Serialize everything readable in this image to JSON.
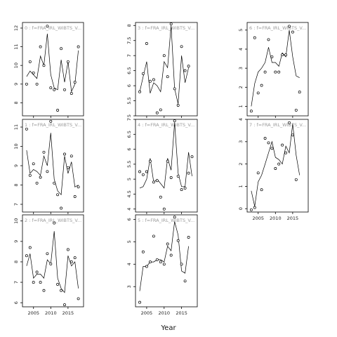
{
  "chart_data": {
    "type": "line",
    "layout": "3x3 facet grid (columns filled top-to-bottom)",
    "xlabel": "Year",
    "ylabel": "",
    "grid": false,
    "legend": "none",
    "x_ticks": [
      2005,
      2010,
      2015
    ],
    "xlim": [
      2001.8,
      2019.5
    ],
    "panels": [
      {
        "title": "0 : f=FRA_IRL_WIBTS_V...",
        "ylim": [
          7.3,
          12.3
        ],
        "y_ticks": [
          8,
          9,
          10,
          11,
          12
        ],
        "line_x": [
          2003,
          2004,
          2005,
          2006,
          2007,
          2008,
          2009,
          2010,
          2011,
          2012,
          2013,
          2014,
          2015,
          2016,
          2017,
          2018
        ],
        "line_y": [
          9.4,
          9.7,
          9.5,
          9.3,
          10.5,
          10.0,
          11.7,
          9.5,
          8.8,
          8.7,
          10.3,
          9.1,
          10.2,
          8.6,
          9.0,
          10.8
        ],
        "points_x": [
          2003,
          2004,
          2005,
          2006,
          2007,
          2008,
          2009,
          2010,
          2011,
          2012,
          2013,
          2014,
          2015,
          2016,
          2017,
          2018
        ],
        "points_y": [
          9.0,
          10.2,
          9.6,
          9.0,
          11.0,
          10.0,
          12.1,
          8.8,
          8.7,
          7.6,
          10.9,
          8.7,
          10.2,
          8.5,
          9.1,
          11.0
        ]
      },
      {
        "title": "1 : f=FRA_IRL_WIBTS_V...",
        "ylim": [
          6.6,
          11.4
        ],
        "y_ticks": [
          7,
          8,
          9,
          10,
          11
        ],
        "line_x": [
          2003,
          2004,
          2005,
          2006,
          2007,
          2008,
          2009,
          2010,
          2011,
          2012,
          2013,
          2014,
          2015,
          2016,
          2017,
          2018
        ],
        "line_y": [
          9.8,
          8.6,
          8.8,
          8.7,
          8.5,
          9.5,
          9.0,
          10.7,
          8.3,
          7.7,
          7.5,
          9.5,
          8.6,
          9.2,
          7.9,
          8.0
        ],
        "points_x": [
          2003,
          2004,
          2005,
          2006,
          2007,
          2008,
          2009,
          2010,
          2011,
          2012,
          2013,
          2014,
          2015,
          2016,
          2017,
          2018
        ],
        "points_y": [
          10.9,
          8.5,
          9.1,
          8.1,
          8.4,
          9.7,
          8.7,
          11.3,
          8.1,
          7.5,
          6.8,
          9.6,
          8.9,
          9.5,
          7.4,
          7.9
        ]
      },
      {
        "title": "2 : f=FRA_IRL_WIBTS_V...",
        "ylim": [
          5.8,
          10.3
        ],
        "y_ticks": [
          6,
          7,
          8,
          9,
          10
        ],
        "line_x": [
          2003,
          2004,
          2005,
          2006,
          2007,
          2008,
          2009,
          2010,
          2011,
          2012,
          2013,
          2014,
          2015,
          2016,
          2017,
          2018
        ],
        "line_y": [
          7.8,
          8.4,
          7.2,
          7.4,
          7.4,
          7.2,
          8.1,
          7.9,
          9.5,
          7.2,
          6.7,
          6.5,
          8.3,
          7.8,
          8.0,
          6.7
        ],
        "points_x": [
          2003,
          2004,
          2005,
          2006,
          2007,
          2008,
          2009,
          2010,
          2011,
          2012,
          2013,
          2014,
          2015,
          2016,
          2017,
          2018
        ],
        "points_y": [
          8.3,
          8.7,
          7.0,
          7.5,
          7.0,
          6.6,
          8.4,
          7.9,
          9.9,
          6.9,
          6.6,
          5.9,
          8.6,
          8.0,
          8.2,
          6.2
        ]
      },
      {
        "title": "3 : f=FRA_IRL_WIBTS_V...",
        "ylim": [
          5.0,
          8.1
        ],
        "y_ticks": [
          5.0,
          5.5,
          6.0,
          6.5,
          7.0,
          7.5,
          8.0
        ],
        "line_x": [
          2003,
          2004,
          2005,
          2006,
          2007,
          2008,
          2009,
          2010,
          2011,
          2012,
          2013,
          2014,
          2015,
          2016,
          2017,
          2018
        ],
        "line_y": [
          5.8,
          6.3,
          6.8,
          5.75,
          6.1,
          6.0,
          5.8,
          6.8,
          6.6,
          8.0,
          5.9,
          5.4,
          7.0,
          6.1,
          6.6,
          null
        ],
        "points_x": [
          2003,
          2004,
          2005,
          2006,
          2007,
          2008,
          2009,
          2010,
          2011,
          2012,
          2013,
          2014,
          2015,
          2016,
          2017,
          2018
        ],
        "points_y": [
          5.8,
          6.4,
          7.4,
          6.15,
          6.2,
          5.1,
          5.2,
          7.0,
          6.3,
          8.05,
          5.9,
          5.35,
          7.3,
          6.5,
          6.65,
          null
        ]
      },
      {
        "title": "4 : f=FRA_IRL_WIBTS_V...",
        "ylim": [
          3.9,
          7.0
        ],
        "y_ticks": [
          4.0,
          4.5,
          5.0,
          5.5,
          6.0,
          6.5,
          7.0
        ],
        "line_x": [
          2003,
          2004,
          2005,
          2006,
          2007,
          2008,
          2009,
          2010,
          2011,
          2012,
          2013,
          2014,
          2015,
          2016,
          2017,
          2018
        ],
        "line_y": [
          4.7,
          4.75,
          5.0,
          5.7,
          4.9,
          5.0,
          4.85,
          4.7,
          5.7,
          5.3,
          6.9,
          5.2,
          4.75,
          4.75,
          5.9,
          5.1
        ],
        "points_x": [
          2003,
          2004,
          2005,
          2006,
          2007,
          2008,
          2009,
          2010,
          2011,
          2012,
          2013,
          2014,
          2015,
          2016,
          2017,
          2018
        ],
        "points_y": [
          5.25,
          5.15,
          5.25,
          5.6,
          4.9,
          4.95,
          4.4,
          4.0,
          5.6,
          5.05,
          6.95,
          5.1,
          4.65,
          4.7,
          5.2,
          5.75
        ]
      },
      {
        "title": "5 : f=FRA_IRL_WIBTS_V...",
        "ylim": [
          2.1,
          6.2
        ],
        "y_ticks": [
          3,
          4,
          5,
          6
        ],
        "line_x": [
          2003,
          2004,
          2005,
          2006,
          2007,
          2008,
          2009,
          2010,
          2011,
          2012,
          2013,
          2014,
          2015,
          2016,
          2017,
          2018
        ],
        "line_y": [
          2.8,
          3.9,
          3.9,
          4.1,
          4.1,
          4.2,
          4.2,
          4.1,
          4.8,
          4.6,
          5.9,
          5.3,
          3.7,
          3.6,
          4.8,
          null
        ],
        "points_x": [
          2003,
          2004,
          2005,
          2006,
          2007,
          2008,
          2009,
          2010,
          2011,
          2012,
          2013,
          2014,
          2015,
          2016,
          2017,
          2018
        ],
        "points_y": [
          2.3,
          4.55,
          3.9,
          4.1,
          5.25,
          4.2,
          4.1,
          4.0,
          4.9,
          4.4,
          6.1,
          5.05,
          4.0,
          3.25,
          5.2,
          null
        ]
      },
      {
        "title": "6 : f=FRA_IRL_WIBTS_V...",
        "ylim": [
          0.5,
          5.4
        ],
        "y_ticks": [
          1,
          2,
          3,
          4,
          5
        ],
        "line_x": [
          2003,
          2004,
          2005,
          2006,
          2007,
          2008,
          2009,
          2010,
          2011,
          2012,
          2013,
          2014,
          2015,
          2016,
          2017,
          2018
        ],
        "line_y": [
          1.0,
          2.2,
          2.8,
          3.0,
          3.3,
          4.1,
          3.3,
          3.3,
          3.1,
          3.8,
          3.6,
          5.0,
          3.6,
          2.6,
          2.5,
          null
        ],
        "points_x": [
          2003,
          2004,
          2005,
          2006,
          2007,
          2008,
          2009,
          2010,
          2011,
          2012,
          2013,
          2014,
          2015,
          2016,
          2017,
          2018
        ],
        "points_y": [
          0.75,
          4.6,
          1.7,
          2.1,
          2.8,
          4.5,
          3.6,
          2.8,
          2.8,
          3.7,
          3.7,
          5.2,
          4.9,
          0.8,
          1.75,
          null
        ]
      },
      {
        "title": "7 : f=FRA_IRL_WIBTS_V...",
        "ylim": [
          -0.15,
          4.0
        ],
        "y_ticks": [
          0,
          1,
          2,
          3,
          4
        ],
        "line_x": [
          2003,
          2004,
          2005,
          2006,
          2007,
          2008,
          2009,
          2010,
          2011,
          2012,
          2013,
          2014,
          2015,
          2016,
          2017,
          2018
        ],
        "line_y": [
          0.8,
          0.1,
          1.2,
          1.5,
          2.0,
          2.5,
          3.0,
          2.3,
          2.2,
          2.0,
          2.8,
          2.5,
          3.8,
          2.4,
          1.5,
          null
        ],
        "points_x": [
          2003,
          2004,
          2005,
          2006,
          2007,
          2008,
          2009,
          2010,
          2011,
          2012,
          2013,
          2014,
          2015,
          2016,
          2017,
          2018
        ],
        "points_y": [
          -0.05,
          0.05,
          1.6,
          0.85,
          3.15,
          2.95,
          2.7,
          1.8,
          2.0,
          2.85,
          2.5,
          3.85,
          3.3,
          1.3,
          null,
          null
        ]
      }
    ]
  }
}
